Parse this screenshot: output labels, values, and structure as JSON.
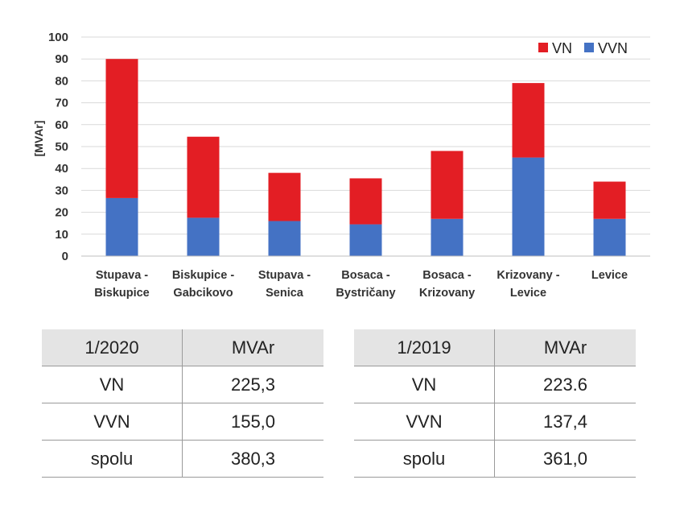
{
  "chart_data": {
    "type": "bar",
    "stacked": true,
    "ylabel": "[MVAr]",
    "ylim": [
      0,
      100
    ],
    "yticks": [
      0,
      10,
      20,
      30,
      40,
      50,
      60,
      70,
      80,
      90,
      100
    ],
    "grid": true,
    "legend_position": "top-right",
    "categories": [
      [
        "Stupava -",
        "Biskupice"
      ],
      [
        "Biskupice -",
        "Gabcikovo"
      ],
      [
        "Stupava -",
        "Senica"
      ],
      [
        "Bosaca -",
        "Bystričany"
      ],
      [
        "Bosaca -",
        "Krizovany"
      ],
      [
        "Krizovany -",
        "Levice"
      ],
      [
        "Levice"
      ]
    ],
    "series": [
      {
        "name": "VVN",
        "color": "#4472c4",
        "values": [
          26.5,
          17.5,
          16.0,
          14.5,
          17.0,
          45.0,
          17.0
        ]
      },
      {
        "name": "VN",
        "color": "#e31e24",
        "values": [
          63.5,
          37.0,
          22.0,
          21.0,
          31.0,
          34.0,
          17.0
        ]
      }
    ],
    "legend": [
      "VN",
      "VVN"
    ]
  },
  "tables": [
    {
      "header": [
        "1/2020",
        "MVAr"
      ],
      "rows": [
        [
          "VN",
          "225,3"
        ],
        [
          "VVN",
          "155,0"
        ],
        [
          "spolu",
          "380,3"
        ]
      ]
    },
    {
      "header": [
        "1/2019",
        "MVAr"
      ],
      "rows": [
        [
          "VN",
          "223.6"
        ],
        [
          "VVN",
          "137,4"
        ],
        [
          "spolu",
          "361,0"
        ]
      ]
    }
  ]
}
